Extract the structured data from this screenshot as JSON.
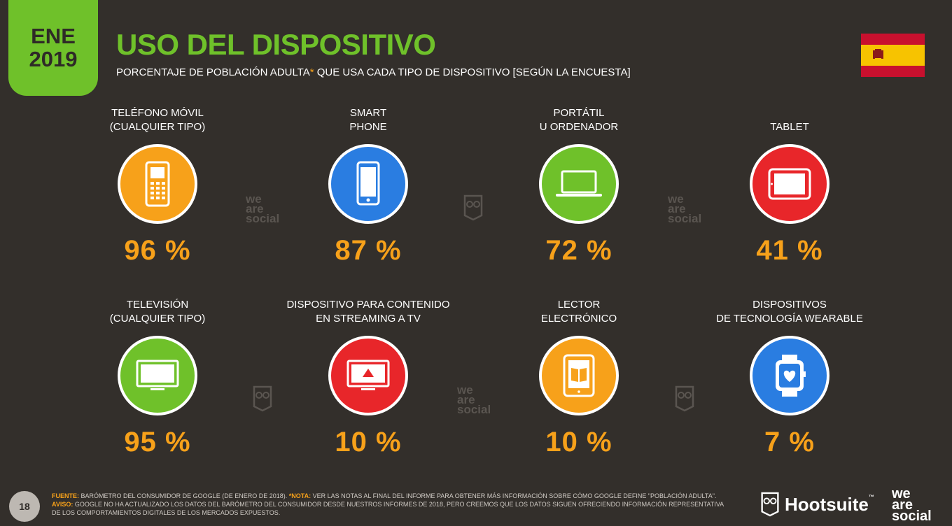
{
  "badge": {
    "month": "ENE",
    "year": "2019"
  },
  "title": "USO DEL DISPOSITIVO",
  "subtitle": {
    "before": "PORCENTAJE DE POBLACIÓN ADULTA",
    "asterisk": "*",
    "after": " QUE USA CADA TIPO DE DISPOSITIVO [SEGÚN LA ENCUESTA]"
  },
  "colors": {
    "accent_green": "#6fc12a",
    "value_orange": "#f7a11a",
    "background": "#332f2b"
  },
  "devices": [
    {
      "line1": "TELÉFONO MÓVIL",
      "line2": "(CUALQUIER TIPO)",
      "value": "96 %",
      "color": "#f7a11a",
      "icon": "feature-phone-icon"
    },
    {
      "line1": "SMART",
      "line2": "PHONE",
      "value": "87 %",
      "color": "#2a7de1",
      "icon": "smartphone-icon"
    },
    {
      "line1": "PORTÁTIL",
      "line2": "U ORDENADOR",
      "value": "72 %",
      "color": "#6fc12a",
      "icon": "laptop-icon"
    },
    {
      "line1": "",
      "line2": "TABLET",
      "value": "41 %",
      "color": "#e8262a",
      "icon": "tablet-icon"
    },
    {
      "line1": "TELEVISIÓN",
      "line2": "(CUALQUIER TIPO)",
      "value": "95 %",
      "color": "#6fc12a",
      "icon": "television-icon"
    },
    {
      "line1": "DISPOSITIVO PARA CONTENIDO",
      "line2": "EN STREAMING A TV",
      "value": "10 %",
      "color": "#e8262a",
      "icon": "streaming-device-icon"
    },
    {
      "line1": "LECTOR",
      "line2": "ELECTRÓNICO",
      "value": "10 %",
      "color": "#f7a11a",
      "icon": "ereader-icon"
    },
    {
      "line1": "DISPOSITIVOS",
      "line2": "DE TECNOLOGÍA WEARABLE",
      "value": "7 %",
      "color": "#2a7de1",
      "icon": "smartwatch-icon"
    }
  ],
  "watermarks": {
    "we": "we",
    "are": "are",
    "social": "social"
  },
  "footer": {
    "page_number": "18",
    "source_label": "FUENTE:",
    "source_text": " BARÓMETRO DEL CONSUMIDOR DE GOOGLE (DE ENERO DE 2018). ",
    "note_label": "*NOTA:",
    "note_text": " VER LAS NOTAS AL FINAL DEL INFORME PARA OBTENER MÁS INFORMACIÓN SOBRE CÓMO GOOGLE DEFINE \"POBLACIÓN ADULTA\". ",
    "warning_label": "AVISO:",
    "warning_text": " GOOGLE NO HA ACTUALIZADO LOS DATOS DEL BARÓMETRO DEL CONSUMIDOR DESDE NUESTROS INFORMES DE 2018, PERO CREEMOS QUE LOS DATOS SIGUEN OFRECIENDO INFORMACIÓN REPRESENTATIVA DE LOS COMPORTAMIENTOS DIGITALES DE LOS MERCADOS EXPUESTOS."
  },
  "brand": {
    "hootsuite": "Hootsuite",
    "tm": "™",
    "we": "we",
    "are": "are",
    "social": "social"
  }
}
